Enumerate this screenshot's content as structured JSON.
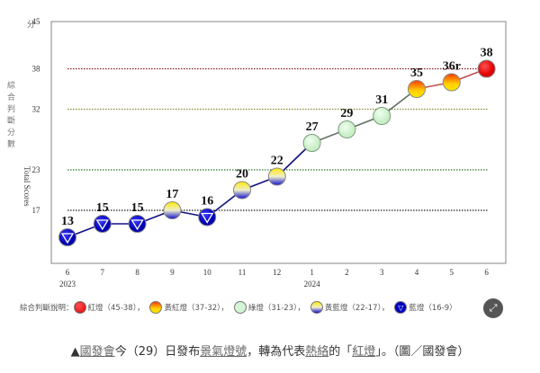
{
  "chart_data": {
    "type": "line",
    "ylabel_zh": "綜合判斷分數",
    "ylabel_en": "Total Scores",
    "yunit": "分",
    "yticks": [
      45,
      38,
      32,
      23,
      17
    ],
    "ylim": [
      9,
      45
    ],
    "x": [
      "6",
      "7",
      "8",
      "9",
      "10",
      "11",
      "12",
      "1",
      "2",
      "3",
      "4",
      "5",
      "6"
    ],
    "year_labels": [
      {
        "index": 0,
        "label": "2023"
      },
      {
        "index": 7,
        "label": "2024"
      }
    ],
    "values": [
      13,
      15,
      15,
      17,
      16,
      20,
      22,
      27,
      29,
      31,
      35,
      36,
      38
    ],
    "point_labels": [
      "13",
      "15",
      "15",
      "17",
      "16",
      "20",
      "22",
      "27",
      "29",
      "31",
      "35",
      "36r",
      "38"
    ],
    "signals": [
      "blue",
      "blue",
      "blue",
      "yellow-blue",
      "blue",
      "yellow-blue",
      "yellow-blue",
      "green",
      "green",
      "green",
      "yellow-red",
      "yellow-red",
      "red"
    ],
    "grid_lines": [
      {
        "value": 38,
        "color": "#8b1a1a"
      },
      {
        "value": 32,
        "color": "#8a8a2a"
      },
      {
        "value": 23,
        "color": "#2a7a2a"
      },
      {
        "value": 17,
        "color": "#222222"
      }
    ],
    "grid": true
  },
  "legend": {
    "title": "綜合判斷說明：",
    "items": [
      {
        "signal": "red",
        "label": "紅燈（45-38）"
      },
      {
        "signal": "yellow-red",
        "label": "黃紅燈（37-32）"
      },
      {
        "signal": "green",
        "label": "綠燈（31-23）"
      },
      {
        "signal": "yellow-blue",
        "label": "黃藍燈（22-17）"
      },
      {
        "signal": "blue",
        "label": "藍燈（16-9）"
      }
    ],
    "sep": "，"
  },
  "caption": {
    "prefix": "▲",
    "link1": "國發會",
    "text1": "今（29）日發布",
    "link2": "景氣燈號",
    "text2": "，轉為代表",
    "link3": "熱絡",
    "text3": "的「",
    "link4": "紅燈",
    "text4": "」。（圖／國發會）"
  }
}
